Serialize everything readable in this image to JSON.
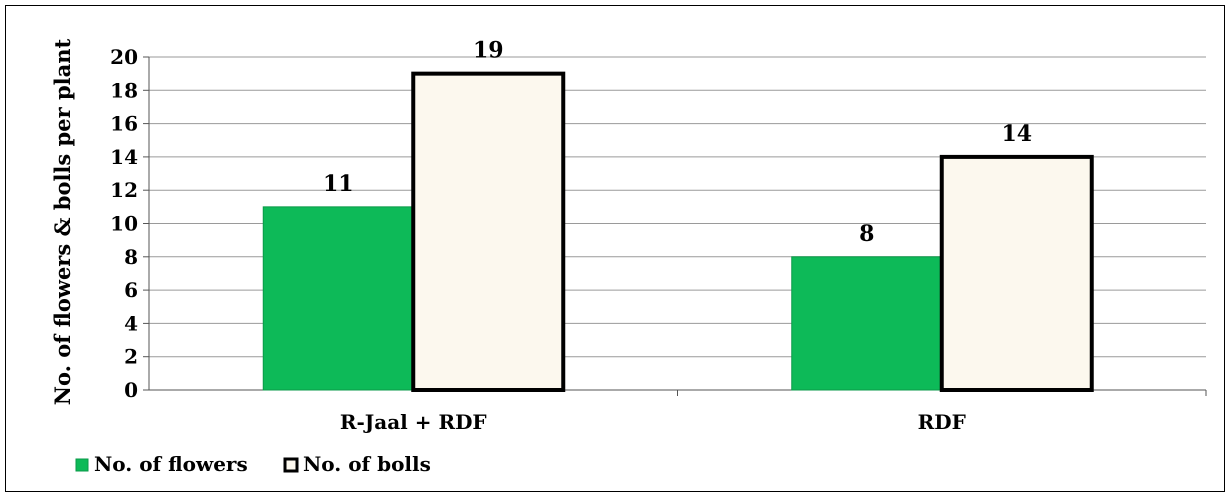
{
  "chart_data": {
    "type": "bar",
    "title": "",
    "xlabel": "",
    "ylabel": "No. of flowers & bolls per plant",
    "categories": [
      "R-Jaal + RDF",
      "RDF"
    ],
    "series": [
      {
        "name": "No. of flowers",
        "values": [
          11,
          8
        ],
        "color": "#0DBA58"
      },
      {
        "name": "No. of bolls",
        "values": [
          19,
          14
        ],
        "color": "#FCF8EE"
      }
    ],
    "ylim": [
      0,
      20
    ],
    "yticks": [
      0,
      2,
      4,
      6,
      8,
      10,
      12,
      14,
      16,
      18,
      20
    ],
    "grid": true,
    "legend_position": "bottom-left",
    "data_labels": true
  }
}
